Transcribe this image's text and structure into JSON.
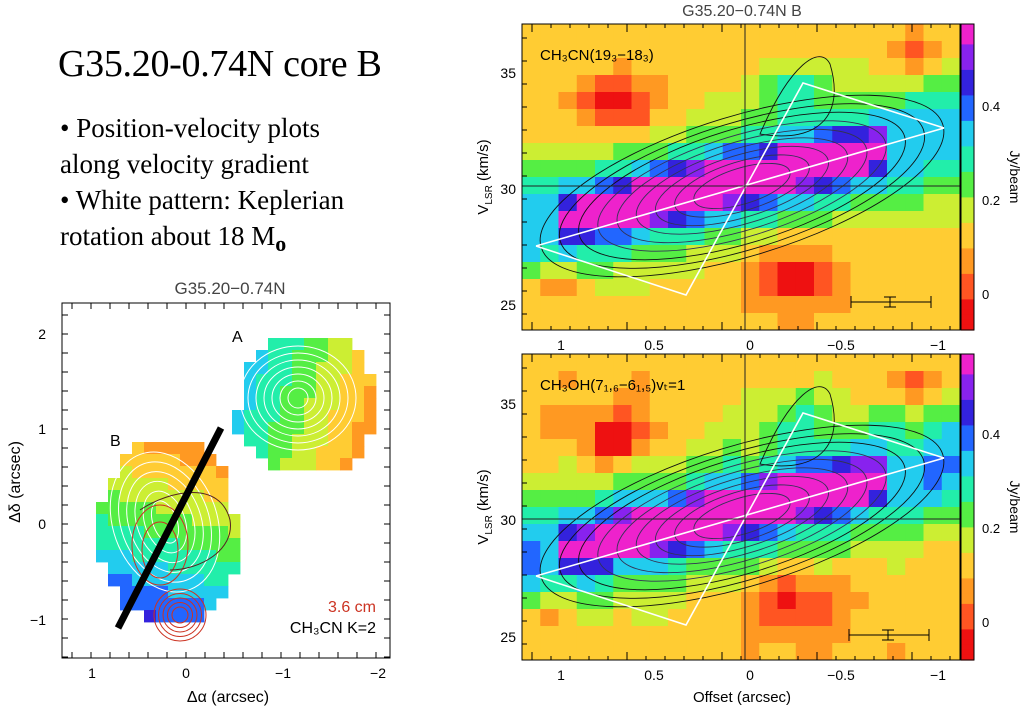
{
  "slide": {
    "title": "G35.20-0.74N core B",
    "bullets": [
      {
        "line1": "• Position-velocity plots",
        "line2": "along velocity gradient"
      },
      {
        "line1": "• White pattern: Keplerian",
        "line2": "rotation about 18 M",
        "subscript": "o"
      }
    ]
  },
  "map_panel": {
    "title": "G35.20−0.74N",
    "xlabel": "Δα (arcsec)",
    "ylabel": "Δδ (arcsec)",
    "xticks": [
      "1",
      "0",
      "−1",
      "−2"
    ],
    "yticks": [
      "2",
      "1",
      "0",
      "−1"
    ],
    "core_labels": [
      "A",
      "B"
    ],
    "legend_red": "3.6 cm",
    "legend_black": "CH₃CN K=2",
    "colors": {
      "red_contour": "#cc3322",
      "cut_line": "#000000"
    }
  },
  "pv_top": {
    "title": "G35.20−0.74N  B",
    "line_label": "CH₃CN(19₃−18₃)",
    "ylabel_main": "V",
    "ylabel_sub": "LSR",
    "ylabel_unit": " (km/s)",
    "yticks": [
      "35",
      "30",
      "25"
    ],
    "xticks": [
      "1",
      "0.5",
      "0",
      "−0.5",
      "−1"
    ],
    "colorbar_label": "Jy/beam",
    "colorbar_ticks": [
      "0.4",
      "0.2",
      "0"
    ]
  },
  "pv_bottom": {
    "line_label": "CH₃OH(7₁,₆−6₁,₅)vₜ=1",
    "ylabel_main": "V",
    "ylabel_sub": "LSR",
    "ylabel_unit": " (km/s)",
    "yticks": [
      "35",
      "30",
      "25"
    ],
    "xticks": [
      "1",
      "0.5",
      "0",
      "−0.5",
      "−1"
    ],
    "xlabel": "Offset (arcsec)",
    "colorbar_label": "Jy/beam",
    "colorbar_ticks": [
      "0.4",
      "0.2",
      "0"
    ]
  },
  "colormap": [
    "#ee1111",
    "#ff5522",
    "#ff9922",
    "#ffcc33",
    "#ccee33",
    "#55ee44",
    "#22eeaa",
    "#22ccee",
    "#2266ff",
    "#3322dd",
    "#8822ee",
    "#ee22cc"
  ]
}
